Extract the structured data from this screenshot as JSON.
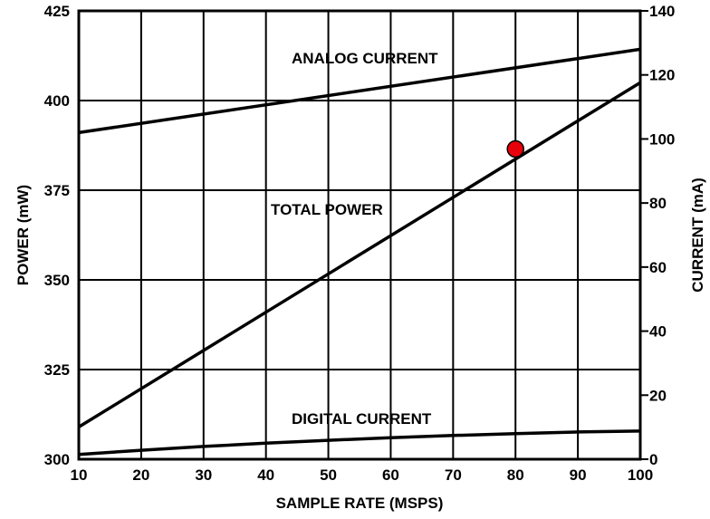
{
  "chart_data": {
    "type": "line",
    "xlabel": "SAMPLE RATE (MSPS)",
    "ylabel": "POWER (mW)",
    "y2label": "CURRENT (mA)",
    "xlim": [
      10,
      100
    ],
    "ylim": [
      300,
      425
    ],
    "y2lim": [
      0,
      140
    ],
    "grid": true,
    "x_ticks": [
      10,
      20,
      30,
      40,
      50,
      60,
      70,
      80,
      90,
      100
    ],
    "y_ticks": [
      300,
      325,
      350,
      375,
      400,
      425
    ],
    "y2_ticks": [
      0,
      20,
      40,
      60,
      80,
      100,
      120,
      140
    ],
    "series": [
      {
        "name": "ANALOG CURRENT",
        "axis": "right",
        "x": [
          10,
          100
        ],
        "values": [
          102,
          128
        ]
      },
      {
        "name": "TOTAL POWER",
        "axis": "left",
        "x": [
          10,
          100
        ],
        "values": [
          309,
          405
        ]
      },
      {
        "name": "DIGITAL CURRENT",
        "axis": "right",
        "x": [
          10,
          20,
          30,
          40,
          50,
          60,
          70,
          80,
          90,
          100
        ],
        "values": [
          1.5,
          2.8,
          4.0,
          5.0,
          5.9,
          6.7,
          7.4,
          8.0,
          8.5,
          8.8
        ]
      }
    ],
    "marker": {
      "x": 80,
      "y": 386.5,
      "axis": "left",
      "color": "#e8000b"
    },
    "line_color": "#000000"
  }
}
